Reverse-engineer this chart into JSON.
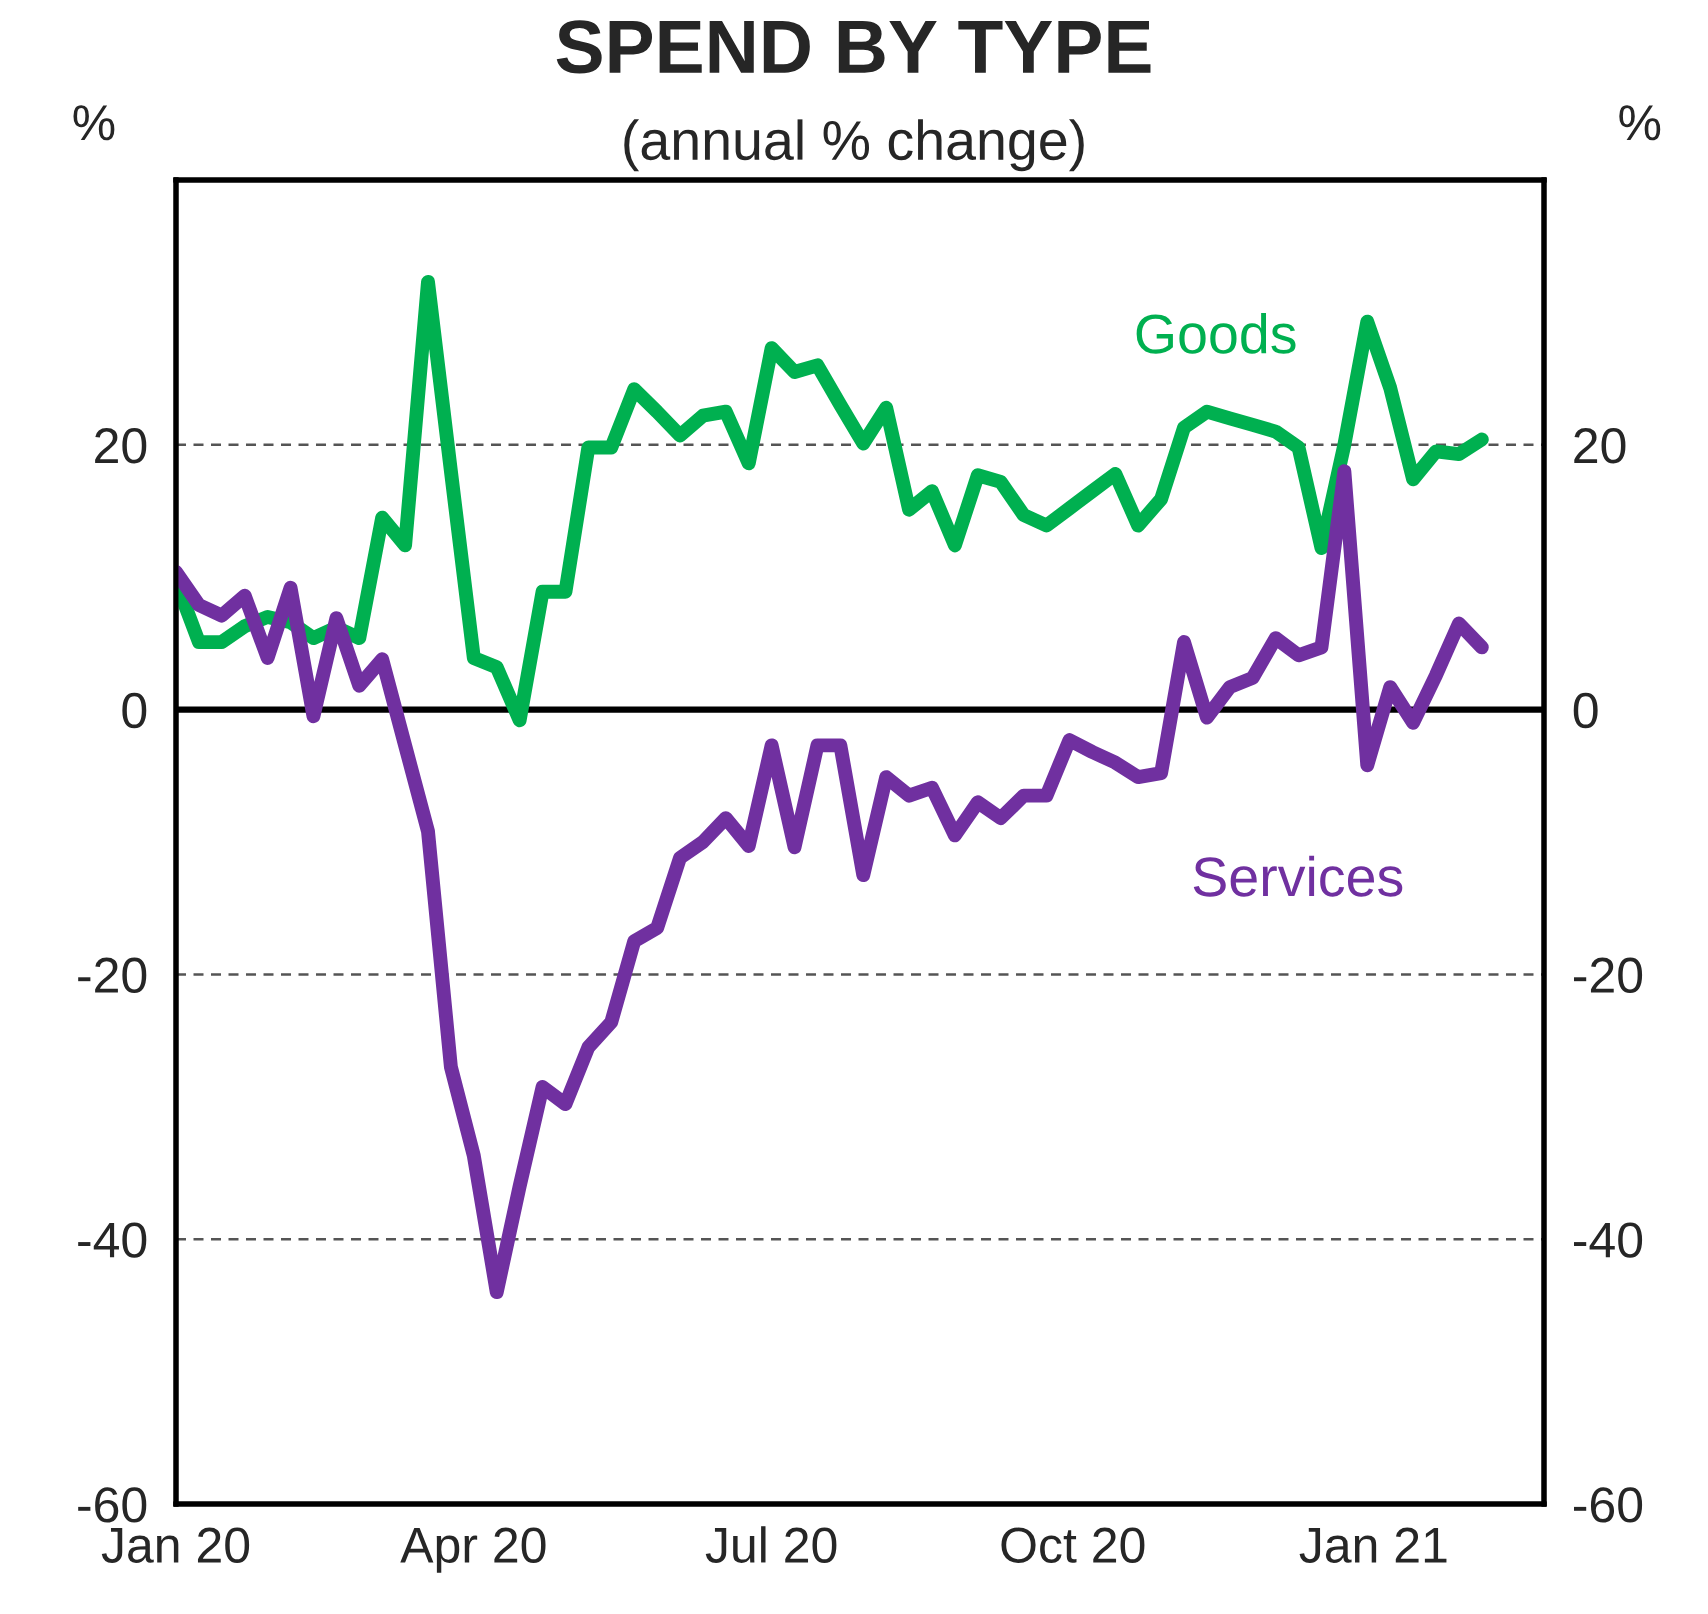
{
  "chart_data": {
    "type": "line",
    "title": "SPEND BY TYPE",
    "subtitle": "(annual % change)",
    "ylabel": "%",
    "y2label": "%",
    "x": [
      "2020-01-01",
      "2020-01-08",
      "2020-01-15",
      "2020-01-22",
      "2020-01-29",
      "2020-02-05",
      "2020-02-12",
      "2020-02-19",
      "2020-02-26",
      "2020-03-04",
      "2020-03-11",
      "2020-03-18",
      "2020-03-25",
      "2020-04-01",
      "2020-04-08",
      "2020-04-15",
      "2020-04-22",
      "2020-04-29",
      "2020-05-06",
      "2020-05-13",
      "2020-05-20",
      "2020-05-27",
      "2020-06-03",
      "2020-06-10",
      "2020-06-17",
      "2020-06-24",
      "2020-07-01",
      "2020-07-08",
      "2020-07-15",
      "2020-07-22",
      "2020-07-29",
      "2020-08-05",
      "2020-08-12",
      "2020-08-19",
      "2020-08-26",
      "2020-09-02",
      "2020-09-09",
      "2020-09-16",
      "2020-09-23",
      "2020-09-30",
      "2020-10-07",
      "2020-10-14",
      "2020-10-21",
      "2020-10-28",
      "2020-11-04",
      "2020-11-11",
      "2020-11-18",
      "2020-11-25",
      "2020-12-02",
      "2020-12-09",
      "2020-12-16",
      "2020-12-23",
      "2020-12-30",
      "2021-01-06",
      "2021-01-13",
      "2021-01-20",
      "2021-01-27",
      "2021-02-03"
    ],
    "series": [
      {
        "name": "Goods",
        "color": "#00b050",
        "values": [
          9.7,
          5.1,
          5.1,
          6.3,
          7.0,
          6.6,
          5.4,
          6.2,
          5.4,
          14.5,
          12.4,
          32.3,
          18,
          3.9,
          3.2,
          -0.8,
          8.9,
          8.9,
          19.8,
          19.8,
          24.2,
          22.5,
          20.7,
          22.2,
          22.5,
          18.6,
          27.3,
          25.5,
          26,
          23,
          20.1,
          22.8,
          15.1,
          16.5,
          12.4,
          17.7,
          17.2,
          14.7,
          13.9,
          15.2,
          16.5,
          17.8,
          13.9,
          15.9,
          21.3,
          22.5,
          22,
          21.5,
          21,
          19.8,
          12.2,
          20,
          29.3,
          24.3,
          17.4,
          19.5,
          19.3,
          20.4
        ]
      },
      {
        "name": "Services",
        "color": "#7030a0",
        "values": [
          10.4,
          7.9,
          7.1,
          8.6,
          3.9,
          9.2,
          -0.5,
          6.9,
          1.8,
          3.8,
          -2.7,
          -9.2,
          -27,
          -33.7,
          -44,
          -36,
          -28.5,
          -29.8,
          -25.5,
          -23.6,
          -17.5,
          -16.5,
          -11.2,
          -10,
          -8.2,
          -10.3,
          -2.7,
          -10.4,
          -2.7,
          -2.7,
          -12.5,
          -5.1,
          -6.5,
          -5.9,
          -9.5,
          -7,
          -8.2,
          -6.5,
          -6.5,
          -2.3,
          -3.2,
          -4,
          -5.1,
          -4.8,
          5.1,
          -0.6,
          1.7,
          2.4,
          5.4,
          4.1,
          4.7,
          18,
          -4.2,
          1.7,
          -1,
          2.6,
          6.5,
          4.7
        ]
      }
    ],
    "xlim": [
      "2020-01-01",
      "2021-02-22"
    ],
    "xticks": [
      {
        "value": "2020-01-01",
        "label": "Jan 20"
      },
      {
        "value": "2020-04-01",
        "label": "Apr 20"
      },
      {
        "value": "2020-07-01",
        "label": "Jul 20"
      },
      {
        "value": "2020-10-01",
        "label": "Oct 20"
      },
      {
        "value": "2021-01-01",
        "label": "Jan 21"
      }
    ],
    "ylim": [
      -60,
      40
    ],
    "yticks": [
      -60,
      -40,
      -20,
      0,
      20
    ],
    "y2lim": [
      -60,
      40
    ],
    "y2ticks": [
      -60,
      -40,
      -20,
      0,
      20
    ],
    "ref_lines": [
      {
        "axis": "y",
        "value": 0,
        "color": "#000000",
        "line_style": "solid"
      }
    ],
    "grid": "y",
    "legend": false,
    "marker": "none",
    "line_style": "solid"
  }
}
